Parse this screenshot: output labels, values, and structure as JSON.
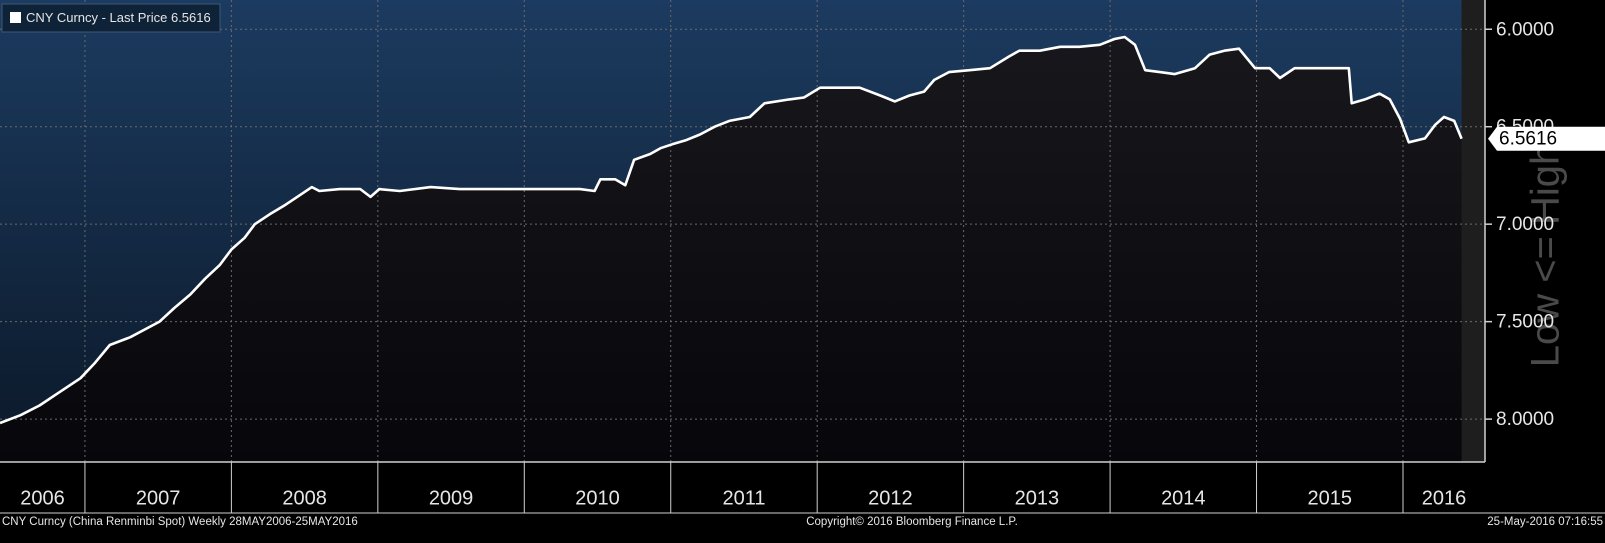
{
  "chart_data": {
    "type": "area-line",
    "legend_label": "CNY Curncy - Last Price 6.5616",
    "footer_left": "CNY Curncy (China Renminbi Spot)  Weekly 28MAY2006-25MAY2016",
    "footer_center": "Copyright© 2016 Bloomberg Finance L.P.",
    "footer_right": "25-May-2016 07:16:55",
    "watermark": "Low <= High",
    "xlim": [
      2006.42,
      2016.56
    ],
    "xticks": [
      2006,
      2007,
      2008,
      2009,
      2010,
      2011,
      2012,
      2013,
      2014,
      2015,
      2016
    ],
    "ylim": [
      8.22,
      5.85
    ],
    "yticks": [
      {
        "value": 6,
        "label": "6.0000"
      },
      {
        "value": 6.5,
        "label": "6.5000"
      },
      {
        "value": 7,
        "label": "7.0000"
      },
      {
        "value": 7.5,
        "label": "7.5000"
      },
      {
        "value": 8,
        "label": "8.0000"
      }
    ],
    "grid": true,
    "x": [
      2006.42,
      2006.56,
      2006.69,
      2006.83,
      2006.97,
      2007.07,
      2007.17,
      2007.31,
      2007.41,
      2007.51,
      2007.61,
      2007.72,
      2007.82,
      2007.92,
      2008.0,
      2008.09,
      2008.16,
      2008.26,
      2008.37,
      2008.47,
      2008.55,
      2008.6,
      2008.74,
      2008.88,
      2008.95,
      2009.01,
      2009.15,
      2009.36,
      2009.56,
      2009.83,
      2010.11,
      2010.38,
      2010.48,
      2010.52,
      2010.62,
      2010.69,
      2010.75,
      2010.86,
      2010.93,
      2011.01,
      2011.1,
      2011.2,
      2011.3,
      2011.4,
      2011.54,
      2011.64,
      2011.81,
      2011.91,
      2012.02,
      2012.15,
      2012.29,
      2012.43,
      2012.53,
      2012.63,
      2012.73,
      2012.8,
      2012.9,
      2013.04,
      2013.18,
      2013.31,
      2013.38,
      2013.52,
      2013.66,
      2013.79,
      2013.93,
      2014.03,
      2014.1,
      2014.17,
      2014.24,
      2014.34,
      2014.44,
      2014.58,
      2014.68,
      2014.78,
      2014.88,
      2014.99,
      2015.09,
      2015.16,
      2015.26,
      2015.36,
      2015.5,
      2015.63,
      2015.65,
      2015.74,
      2015.84,
      2015.91,
      2015.98,
      2016.04,
      2016.15,
      2016.22,
      2016.28,
      2016.35,
      2016.4
    ],
    "series": [
      {
        "name": "CNY Curncy - Last Price",
        "color": "#ffffff",
        "values": [
          8.02,
          7.98,
          7.93,
          7.86,
          7.79,
          7.71,
          7.62,
          7.58,
          7.54,
          7.5,
          7.43,
          7.36,
          7.28,
          7.21,
          7.13,
          7.07,
          7.0,
          6.95,
          6.9,
          6.85,
          6.81,
          6.83,
          6.82,
          6.82,
          6.86,
          6.82,
          6.83,
          6.81,
          6.82,
          6.82,
          6.82,
          6.82,
          6.83,
          6.77,
          6.77,
          6.8,
          6.67,
          6.64,
          6.61,
          6.59,
          6.57,
          6.54,
          6.5,
          6.47,
          6.45,
          6.38,
          6.36,
          6.35,
          6.3,
          6.3,
          6.3,
          6.34,
          6.37,
          6.34,
          6.32,
          6.26,
          6.22,
          6.21,
          6.2,
          6.14,
          6.11,
          6.11,
          6.09,
          6.09,
          6.08,
          6.05,
          6.04,
          6.08,
          6.21,
          6.22,
          6.23,
          6.2,
          6.13,
          6.11,
          6.1,
          6.2,
          6.2,
          6.25,
          6.2,
          6.2,
          6.2,
          6.2,
          6.38,
          6.36,
          6.33,
          6.36,
          6.46,
          6.58,
          6.56,
          6.49,
          6.45,
          6.47,
          6.5616
        ]
      }
    ]
  }
}
